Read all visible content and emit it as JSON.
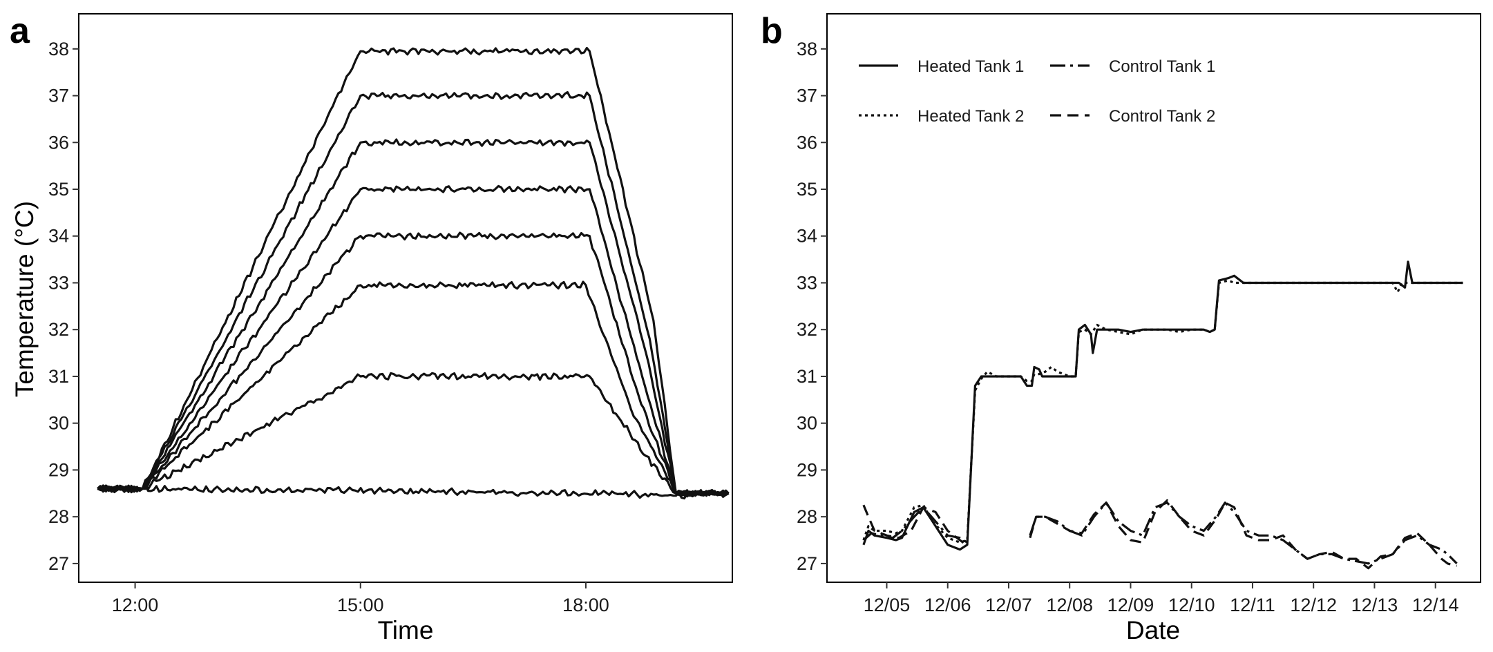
{
  "panels": {
    "a": {
      "letter": "a",
      "xlabel": "Time",
      "ylabel": "Temperature (°C)",
      "x_ticks": [
        "12:00",
        "15:00",
        "18:00"
      ],
      "y_ticks": [
        "27",
        "28",
        "29",
        "30",
        "31",
        "32",
        "33",
        "34",
        "35",
        "36",
        "37",
        "38"
      ]
    },
    "b": {
      "letter": "b",
      "xlabel": "Date",
      "x_ticks": [
        "12/05",
        "12/06",
        "12/07",
        "12/08",
        "12/09",
        "12/10",
        "12/11",
        "12/12",
        "12/13",
        "12/14"
      ],
      "y_ticks": [
        "27",
        "28",
        "29",
        "30",
        "31",
        "32",
        "33",
        "34",
        "35",
        "36",
        "37",
        "38"
      ],
      "legend": [
        {
          "label": "Heated Tank 1",
          "style": "solid"
        },
        {
          "label": "Control Tank 1",
          "style": "dashdot"
        },
        {
          "label": "Heated Tank 2",
          "style": "dotted"
        },
        {
          "label": "Control Tank 2",
          "style": "dashed"
        }
      ]
    }
  },
  "chart_data": [
    {
      "type": "line",
      "panel": "a",
      "xlabel": "Time",
      "ylabel": "Temperature (°C)",
      "xlim": [
        11.25,
        19.95
      ],
      "ylim": [
        26.6,
        38.75
      ],
      "x_unit": "hour of day",
      "grid": false,
      "series": [
        {
          "x": [
            11.5,
            12.0,
            12.1,
            18.2,
            19.2,
            19.9
          ],
          "y": [
            28.6,
            28.6,
            28.6,
            28.5,
            28.45,
            28.5
          ]
        },
        {
          "x": [
            11.5,
            12.1,
            15.0,
            18.05,
            18.4,
            18.8,
            19.2,
            19.9
          ],
          "y": [
            28.6,
            28.6,
            31.0,
            31.0,
            30.2,
            29.3,
            28.5,
            28.5
          ]
        },
        {
          "x": [
            11.5,
            12.1,
            15.0,
            18.0,
            18.6,
            19.2,
            19.9
          ],
          "y": [
            28.6,
            28.6,
            32.95,
            32.95,
            30.3,
            28.5,
            28.5
          ]
        },
        {
          "x": [
            11.5,
            12.1,
            15.0,
            18.05,
            18.7,
            19.2,
            19.9
          ],
          "y": [
            28.6,
            28.6,
            34.0,
            34.0,
            30.6,
            28.5,
            28.5
          ]
        },
        {
          "x": [
            11.5,
            12.1,
            15.0,
            18.05,
            18.75,
            19.2,
            19.9
          ],
          "y": [
            28.6,
            28.6,
            35.0,
            35.0,
            31.0,
            28.5,
            28.5
          ]
        },
        {
          "x": [
            11.5,
            12.1,
            15.0,
            18.05,
            18.8,
            19.2,
            19.9
          ],
          "y": [
            28.6,
            28.6,
            36.0,
            36.0,
            31.5,
            28.5,
            28.5
          ]
        },
        {
          "x": [
            11.5,
            12.1,
            15.0,
            18.05,
            18.85,
            19.2,
            19.9
          ],
          "y": [
            28.6,
            28.6,
            37.0,
            37.0,
            31.8,
            28.5,
            28.5
          ]
        },
        {
          "x": [
            11.5,
            12.1,
            15.0,
            18.05,
            18.9,
            19.2,
            19.9
          ],
          "y": [
            28.6,
            28.6,
            37.95,
            37.95,
            32.2,
            28.5,
            28.5
          ]
        }
      ]
    },
    {
      "type": "line",
      "panel": "b",
      "xlabel": "Date",
      "ylabel": "",
      "x_unit": "day of month (December; 5.0 = 12/05)",
      "xlim": [
        4.02,
        14.74
      ],
      "ylim": [
        26.6,
        38.75
      ],
      "grid": false,
      "legend_position": "top-left",
      "series": [
        {
          "name": "Heated Tank 1",
          "style": "solid",
          "x": [
            4.62,
            4.7,
            4.8,
            5.0,
            5.15,
            5.25,
            5.45,
            5.6,
            5.75,
            6.0,
            6.1,
            6.2,
            6.32,
            6.45,
            6.55,
            6.65,
            6.8,
            7.0,
            7.2,
            7.3,
            7.38,
            7.42,
            7.5,
            7.55,
            7.65,
            7.8,
            8.0,
            8.1,
            8.15,
            8.25,
            8.35,
            8.38,
            8.45,
            8.6,
            8.8,
            9.0,
            9.2,
            9.4,
            9.6,
            9.8,
            10.0,
            10.2,
            10.3,
            10.38,
            10.45,
            10.6,
            10.7,
            10.85,
            11.0,
            11.2,
            11.4,
            11.6,
            11.8,
            12.0,
            12.2,
            12.4,
            12.6,
            12.8,
            13.0,
            13.2,
            13.4,
            13.5,
            13.55,
            13.62,
            13.7,
            13.9,
            14.1,
            14.3,
            14.45
          ],
          "y": [
            27.4,
            27.7,
            27.6,
            27.55,
            27.5,
            27.55,
            28.1,
            28.2,
            27.9,
            27.4,
            27.35,
            27.3,
            27.4,
            30.8,
            31.0,
            31.0,
            31.0,
            31.0,
            31.0,
            30.8,
            30.8,
            31.2,
            31.15,
            31.0,
            31.0,
            31.0,
            31.0,
            31.0,
            32.0,
            32.1,
            31.9,
            31.5,
            32.0,
            32.0,
            32.0,
            31.95,
            32.0,
            32.0,
            32.0,
            32.0,
            32.0,
            32.0,
            31.95,
            32.0,
            33.05,
            33.1,
            33.15,
            33.0,
            33.0,
            33.0,
            33.0,
            33.0,
            33.0,
            33.0,
            33.0,
            33.0,
            33.0,
            33.0,
            33.0,
            33.0,
            33.0,
            32.9,
            33.45,
            33.0,
            33.0,
            33.0,
            33.0,
            33.0,
            33.0
          ]
        },
        {
          "name": "Heated Tank 2",
          "style": "dotted",
          "x": [
            4.62,
            4.7,
            4.8,
            5.0,
            5.15,
            5.25,
            5.45,
            5.6,
            5.75,
            6.0,
            6.1,
            6.2,
            6.32,
            6.45,
            6.55,
            6.65,
            6.8,
            7.0,
            7.2,
            7.3,
            7.38,
            7.42,
            7.5,
            7.6,
            7.7,
            7.8,
            8.0,
            8.1,
            8.15,
            8.25,
            8.35,
            8.45,
            8.6,
            8.8,
            9.0,
            9.2,
            9.4,
            9.6,
            9.8,
            10.0,
            10.2,
            10.3,
            10.38,
            10.45,
            10.6,
            10.7,
            10.85,
            11.0,
            11.2,
            11.4,
            11.6,
            11.8,
            12.0,
            12.2,
            12.4,
            12.6,
            12.8,
            13.0,
            13.2,
            13.3,
            13.38,
            13.45,
            13.6,
            13.8,
            14.0,
            14.2,
            14.45
          ],
          "y": [
            27.5,
            27.8,
            27.7,
            27.7,
            27.65,
            27.7,
            28.2,
            28.25,
            27.9,
            27.55,
            27.5,
            27.45,
            27.5,
            30.7,
            30.95,
            31.1,
            31.0,
            31.0,
            31.0,
            30.9,
            30.9,
            31.05,
            31.05,
            31.1,
            31.2,
            31.1,
            31.0,
            31.0,
            31.95,
            32.0,
            31.9,
            32.1,
            32.0,
            31.95,
            31.9,
            32.0,
            32.0,
            32.0,
            31.95,
            32.0,
            32.0,
            31.95,
            32.0,
            33.0,
            33.05,
            33.0,
            33.0,
            33.0,
            33.0,
            33.0,
            33.0,
            33.0,
            33.0,
            33.0,
            33.0,
            33.0,
            33.0,
            33.0,
            33.0,
            33.0,
            32.8,
            33.0,
            33.0,
            33.0,
            33.0,
            33.0,
            33.0
          ]
        },
        {
          "name": "Control Tank 1",
          "style": "dashdot",
          "x": [
            4.62,
            4.75,
            4.9,
            5.1,
            5.25,
            5.45,
            5.6,
            5.8,
            6.0,
            6.2,
            6.32,
            null,
            7.35,
            7.45,
            7.6,
            7.8,
            8.0,
            8.2,
            8.4,
            8.6,
            8.8,
            9.0,
            9.2,
            9.4,
            9.6,
            9.8,
            10.0,
            10.2,
            10.4,
            10.55,
            10.7,
            10.9,
            11.1,
            11.3,
            11.5,
            11.7,
            11.9,
            12.1,
            12.3,
            12.5,
            12.7,
            12.9,
            13.1,
            13.3,
            13.5,
            13.7,
            13.9,
            14.1,
            14.2,
            14.35
          ],
          "y": [
            27.5,
            27.65,
            27.6,
            27.55,
            27.7,
            28.0,
            28.2,
            27.9,
            27.6,
            27.55,
            27.45,
            null,
            27.6,
            28.0,
            28.0,
            27.9,
            27.7,
            27.6,
            28.0,
            28.3,
            27.9,
            27.7,
            27.6,
            28.2,
            28.3,
            28.0,
            27.8,
            27.7,
            28.0,
            28.3,
            28.1,
            27.7,
            27.6,
            27.6,
            27.5,
            27.3,
            27.1,
            27.2,
            27.2,
            27.1,
            27.05,
            27.0,
            27.1,
            27.2,
            27.5,
            27.6,
            27.4,
            27.3,
            27.2,
            27.0
          ]
        },
        {
          "name": "Control Tank 2",
          "style": "dashed",
          "x": [
            4.62,
            4.7,
            4.8,
            5.0,
            5.2,
            5.4,
            5.6,
            5.8,
            6.0,
            6.2,
            6.3,
            null,
            7.35,
            7.45,
            7.6,
            7.8,
            8.0,
            8.2,
            8.4,
            8.6,
            8.8,
            9.0,
            9.2,
            9.4,
            9.6,
            9.8,
            10.0,
            10.2,
            10.4,
            10.55,
            10.7,
            10.9,
            11.1,
            11.3,
            11.5,
            11.7,
            11.9,
            12.1,
            12.3,
            12.5,
            12.7,
            12.9,
            13.1,
            13.3,
            13.5,
            13.7,
            13.9,
            14.1,
            14.2,
            14.35
          ],
          "y": [
            28.25,
            28.0,
            27.7,
            27.6,
            27.55,
            27.7,
            28.2,
            28.1,
            27.7,
            27.5,
            27.4,
            null,
            27.55,
            28.0,
            28.0,
            27.85,
            27.7,
            27.65,
            28.05,
            28.3,
            27.8,
            27.5,
            27.45,
            28.1,
            28.35,
            28.0,
            27.7,
            27.6,
            27.95,
            28.3,
            28.2,
            27.6,
            27.5,
            27.5,
            27.6,
            27.3,
            27.1,
            27.2,
            27.25,
            27.1,
            27.1,
            26.9,
            27.15,
            27.2,
            27.55,
            27.65,
            27.4,
            27.1,
            27.0,
            26.95
          ]
        }
      ]
    }
  ]
}
